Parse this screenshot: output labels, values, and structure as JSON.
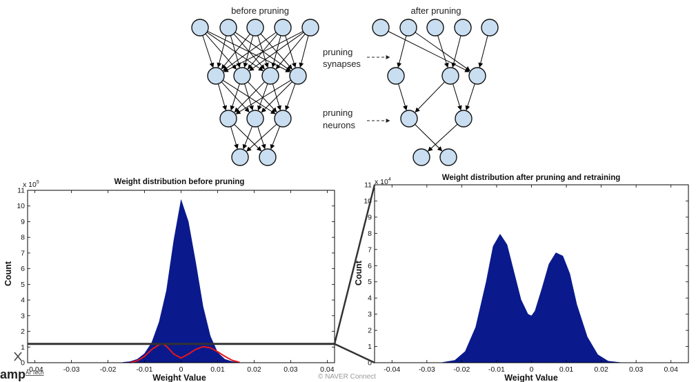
{
  "diagram": {
    "before_title": "before pruning",
    "after_title": "after pruning",
    "annotation_synapses_1": "pruning",
    "annotation_synapses_2": "synapses",
    "annotation_neurons_1": "pruning",
    "annotation_neurons_2": "neurons"
  },
  "chart_data": [
    {
      "type": "area",
      "title": "Weight distribution before pruning",
      "xlabel": "Weight Value",
      "ylabel": "Count",
      "y_multiplier": "x 10^5",
      "y_multiplier_base": "x 10",
      "y_multiplier_exp": "5",
      "xlim": [
        -0.042,
        0.042
      ],
      "ylim": [
        0,
        11
      ],
      "x_ticks": [
        "-0.04",
        "-0.03",
        "-0.02",
        "-0.01",
        "0",
        "0.01",
        "0.02",
        "0.03",
        "0.04"
      ],
      "y_ticks": [
        "0",
        "1",
        "2",
        "3",
        "4",
        "5",
        "6",
        "7",
        "8",
        "9",
        "10",
        "11"
      ],
      "series": [
        {
          "color": "#0a1a8c",
          "x": [
            -0.016,
            -0.014,
            -0.012,
            -0.01,
            -0.008,
            -0.006,
            -0.004,
            -0.002,
            0,
            0.002,
            0.004,
            0.006,
            0.008,
            0.01,
            0.012,
            0.014,
            0.016
          ],
          "y": [
            0.02,
            0.07,
            0.22,
            0.58,
            1.3,
            2.6,
            4.6,
            7.8,
            10.4,
            9.0,
            6.4,
            3.6,
            1.7,
            0.65,
            0.22,
            0.07,
            0.02
          ]
        }
      ],
      "overlay": {
        "color": "#e8151b",
        "x": [
          -0.014,
          -0.012,
          -0.01,
          -0.008,
          -0.006,
          -0.005,
          -0.004,
          -0.002,
          0,
          0.002,
          0.004,
          0.006,
          0.008,
          0.01,
          0.012,
          0.014,
          0.016
        ],
        "y": [
          0.0,
          0.12,
          0.4,
          0.85,
          1.15,
          1.2,
          1.05,
          0.55,
          0.3,
          0.55,
          0.85,
          1.02,
          0.95,
          0.7,
          0.4,
          0.15,
          0.02
        ]
      },
      "threshold_line": 1.2,
      "grid": false
    },
    {
      "type": "area",
      "title": "Weight distribution after pruning and retraining",
      "xlabel": "Weight Value",
      "ylabel": "Count",
      "y_multiplier": "x 10^4",
      "y_multiplier_base": "x 10",
      "y_multiplier_exp": "4",
      "xlim": [
        -0.045,
        0.045
      ],
      "ylim": [
        0,
        11
      ],
      "x_ticks": [
        "-0.04",
        "-0.03",
        "-0.02",
        "-0.01",
        "0",
        "0.01",
        "0.02",
        "0.03",
        "0.04"
      ],
      "y_ticks": [
        "0",
        "1",
        "2",
        "3",
        "4",
        "5",
        "6",
        "7",
        "8",
        "9",
        "10",
        "11"
      ],
      "series": [
        {
          "color": "#0a1a8c",
          "x": [
            -0.026,
            -0.022,
            -0.019,
            -0.016,
            -0.013,
            -0.011,
            -0.009,
            -0.007,
            -0.005,
            -0.003,
            -0.001,
            0,
            0.001,
            0.003,
            0.005,
            0.007,
            0.009,
            0.011,
            0.013,
            0.016,
            0.019,
            0.022,
            0.026
          ],
          "y": [
            0.0,
            0.15,
            0.7,
            2.2,
            5.0,
            7.2,
            7.95,
            7.3,
            5.6,
            3.9,
            3.0,
            2.9,
            3.2,
            4.6,
            6.1,
            6.8,
            6.6,
            5.5,
            3.6,
            1.6,
            0.5,
            0.1,
            0.0
          ]
        }
      ],
      "grid": false
    }
  ],
  "footer": {
    "logo": "amp",
    "logo_sub": "AI Tech",
    "credit": "© NAVER Connect"
  }
}
